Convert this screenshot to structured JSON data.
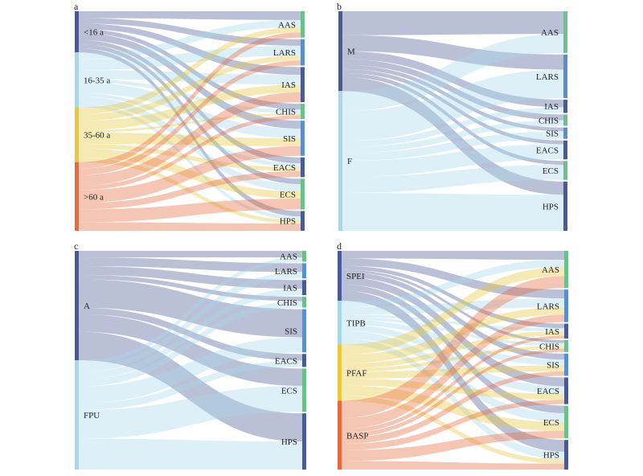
{
  "panels": [
    {
      "letter": "a",
      "left": [
        {
          "label": "<16 a",
          "color": "#4a5a94",
          "weight": 3
        },
        {
          "label": "16-35 a",
          "color": "#a6d8ec",
          "weight": 4
        },
        {
          "label": "35-60 a",
          "color": "#e8c93a",
          "weight": 4
        },
        {
          "label": ">60 a",
          "color": "#e86a3c",
          "weight": 5
        }
      ],
      "right": [
        {
          "label": "AAS",
          "color": "#6cc08a",
          "weight": 1.2
        },
        {
          "label": "LARS",
          "color": "#5b8fcc",
          "weight": 1.2
        },
        {
          "label": "IAS",
          "color": "#4a5a94",
          "weight": 1.6
        },
        {
          "label": "CHIS",
          "color": "#6cc08a",
          "weight": 0.7
        },
        {
          "label": "SIS",
          "color": "#5b8fcc",
          "weight": 1.6
        },
        {
          "label": "EACS",
          "color": "#4a5a94",
          "weight": 0.9
        },
        {
          "label": "ECS",
          "color": "#6cc08a",
          "weight": 1.4
        },
        {
          "label": "HPS",
          "color": "#4a5a94",
          "weight": 0.9
        }
      ],
      "flows": [
        [
          0,
          0,
          0.5
        ],
        [
          0,
          1,
          0.4
        ],
        [
          0,
          2,
          0.4
        ],
        [
          0,
          3,
          0.3
        ],
        [
          0,
          4,
          0.5
        ],
        [
          0,
          5,
          0.3
        ],
        [
          0,
          6,
          0.3
        ],
        [
          0,
          7,
          0.3
        ],
        [
          1,
          0,
          0.4
        ],
        [
          1,
          1,
          0.6
        ],
        [
          1,
          2,
          0.5
        ],
        [
          1,
          3,
          0.2
        ],
        [
          1,
          4,
          0.6
        ],
        [
          1,
          5,
          0.2
        ],
        [
          1,
          6,
          0.4
        ],
        [
          1,
          7,
          0.2
        ],
        [
          2,
          0,
          0.3
        ],
        [
          2,
          1,
          0.3
        ],
        [
          2,
          2,
          0.4
        ],
        [
          2,
          3,
          0.1
        ],
        [
          2,
          4,
          0.5
        ],
        [
          2,
          5,
          0.2
        ],
        [
          2,
          6,
          0.4
        ],
        [
          2,
          7,
          0.2
        ],
        [
          3,
          0,
          0.3
        ],
        [
          3,
          1,
          0.3
        ],
        [
          3,
          2,
          0.5
        ],
        [
          3,
          3,
          0.2
        ],
        [
          3,
          4,
          0.6
        ],
        [
          3,
          5,
          0.3
        ],
        [
          3,
          6,
          0.6
        ],
        [
          3,
          7,
          0.4
        ]
      ]
    },
    {
      "letter": "b",
      "left": [
        {
          "label": "M",
          "color": "#4a5a94",
          "weight": 4
        },
        {
          "label": "F",
          "color": "#a6d8ec",
          "weight": 7
        }
      ],
      "right": [
        {
          "label": "AAS",
          "color": "#6cc08a",
          "weight": 2.2
        },
        {
          "label": "LARS",
          "color": "#5b8fcc",
          "weight": 2.3
        },
        {
          "label": "IAS",
          "color": "#4a5a94",
          "weight": 0.7
        },
        {
          "label": "CHIS",
          "color": "#6cc08a",
          "weight": 0.6
        },
        {
          "label": "SIS",
          "color": "#5b8fcc",
          "weight": 0.6
        },
        {
          "label": "EACS",
          "color": "#4a5a94",
          "weight": 1.0
        },
        {
          "label": "ECS",
          "color": "#6cc08a",
          "weight": 1.0
        },
        {
          "label": "HPS",
          "color": "#4a5a94",
          "weight": 2.6
        }
      ],
      "flows": [
        [
          0,
          0,
          1.2
        ],
        [
          0,
          1,
          0.8
        ],
        [
          0,
          2,
          0.4
        ],
        [
          0,
          3,
          0.3
        ],
        [
          0,
          4,
          0.2
        ],
        [
          0,
          5,
          0.2
        ],
        [
          0,
          6,
          0.2
        ],
        [
          0,
          7,
          0.7
        ],
        [
          1,
          0,
          1.0
        ],
        [
          1,
          1,
          1.5
        ],
        [
          1,
          2,
          0.3
        ],
        [
          1,
          3,
          0.3
        ],
        [
          1,
          4,
          0.4
        ],
        [
          1,
          5,
          0.8
        ],
        [
          1,
          6,
          0.8
        ],
        [
          1,
          7,
          1.9
        ]
      ]
    },
    {
      "letter": "c",
      "left": [
        {
          "label": "A",
          "color": "#4a5a94",
          "weight": 5
        },
        {
          "label": "FPU",
          "color": "#a6d8ec",
          "weight": 5
        }
      ],
      "right": [
        {
          "label": "AAS",
          "color": "#6cc08a",
          "weight": 0.5
        },
        {
          "label": "LARS",
          "color": "#5b8fcc",
          "weight": 0.7
        },
        {
          "label": "IAS",
          "color": "#4a5a94",
          "weight": 0.7
        },
        {
          "label": "CHIS",
          "color": "#6cc08a",
          "weight": 0.5
        },
        {
          "label": "SIS",
          "color": "#5b8fcc",
          "weight": 2.0
        },
        {
          "label": "EACS",
          "color": "#4a5a94",
          "weight": 0.6
        },
        {
          "label": "ECS",
          "color": "#6cc08a",
          "weight": 2.0
        },
        {
          "label": "HPS",
          "color": "#4a5a94",
          "weight": 2.6
        }
      ],
      "flows": [
        [
          0,
          0,
          0.3
        ],
        [
          0,
          1,
          0.4
        ],
        [
          0,
          2,
          0.4
        ],
        [
          0,
          3,
          0.2
        ],
        [
          0,
          4,
          1.3
        ],
        [
          0,
          5,
          0.3
        ],
        [
          0,
          6,
          0.8
        ],
        [
          0,
          7,
          1.3
        ],
        [
          1,
          0,
          0.2
        ],
        [
          1,
          1,
          0.3
        ],
        [
          1,
          2,
          0.3
        ],
        [
          1,
          3,
          0.3
        ],
        [
          1,
          4,
          0.7
        ],
        [
          1,
          5,
          0.3
        ],
        [
          1,
          6,
          1.2
        ],
        [
          1,
          7,
          1.3
        ]
      ]
    },
    {
      "letter": "d",
      "left": [
        {
          "label": "SPEI",
          "color": "#4a5a94",
          "weight": 4
        },
        {
          "label": "TIPB",
          "color": "#a6d8ec",
          "weight": 3.5
        },
        {
          "label": "PFAF",
          "color": "#e8c93a",
          "weight": 4.5
        },
        {
          "label": "BASP",
          "color": "#e86a3c",
          "weight": 5.5
        }
      ],
      "right": [
        {
          "label": "AAS",
          "color": "#6cc08a",
          "weight": 2.5
        },
        {
          "label": "LARS",
          "color": "#5b8fcc",
          "weight": 2.2
        },
        {
          "label": "IAS",
          "color": "#4a5a94",
          "weight": 1.0
        },
        {
          "label": "CHIS",
          "color": "#6cc08a",
          "weight": 0.8
        },
        {
          "label": "SIS",
          "color": "#5b8fcc",
          "weight": 1.5
        },
        {
          "label": "EACS",
          "color": "#4a5a94",
          "weight": 1.8
        },
        {
          "label": "ECS",
          "color": "#6cc08a",
          "weight": 2.2
        },
        {
          "label": "HPS",
          "color": "#4a5a94",
          "weight": 2.0
        }
      ],
      "flows": [
        [
          0,
          0,
          0.6
        ],
        [
          0,
          1,
          0.6
        ],
        [
          0,
          2,
          0.3
        ],
        [
          0,
          3,
          0.2
        ],
        [
          0,
          4,
          0.4
        ],
        [
          0,
          5,
          0.6
        ],
        [
          0,
          6,
          0.5
        ],
        [
          0,
          7,
          0.8
        ],
        [
          1,
          0,
          0.5
        ],
        [
          1,
          1,
          0.6
        ],
        [
          1,
          2,
          0.2
        ],
        [
          1,
          3,
          0.2
        ],
        [
          1,
          4,
          0.4
        ],
        [
          1,
          5,
          0.5
        ],
        [
          1,
          6,
          0.6
        ],
        [
          1,
          7,
          0.5
        ],
        [
          2,
          0,
          0.6
        ],
        [
          2,
          1,
          0.5
        ],
        [
          2,
          2,
          0.3
        ],
        [
          2,
          3,
          0.2
        ],
        [
          2,
          4,
          0.4
        ],
        [
          2,
          5,
          0.4
        ],
        [
          2,
          6,
          0.6
        ],
        [
          2,
          7,
          0.3
        ],
        [
          3,
          0,
          0.8
        ],
        [
          3,
          1,
          0.5
        ],
        [
          3,
          2,
          0.2
        ],
        [
          3,
          3,
          0.2
        ],
        [
          3,
          4,
          0.3
        ],
        [
          3,
          5,
          0.3
        ],
        [
          3,
          6,
          0.5
        ],
        [
          3,
          7,
          0.4
        ]
      ]
    }
  ]
}
